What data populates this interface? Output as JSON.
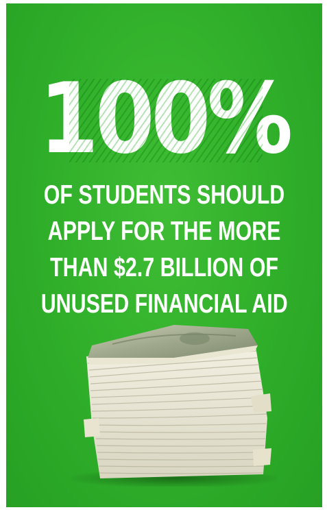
{
  "poster": {
    "headline": "100%",
    "lines": [
      "OF STUDENTS SHOULD",
      "APPLY FOR THE MORE",
      "THAN $2.7 BILLION OF",
      "UNUSED FINANCIAL AID"
    ],
    "background_color": "#2fae2a",
    "text_color": "#ffffff",
    "image": "stack-of-money"
  }
}
